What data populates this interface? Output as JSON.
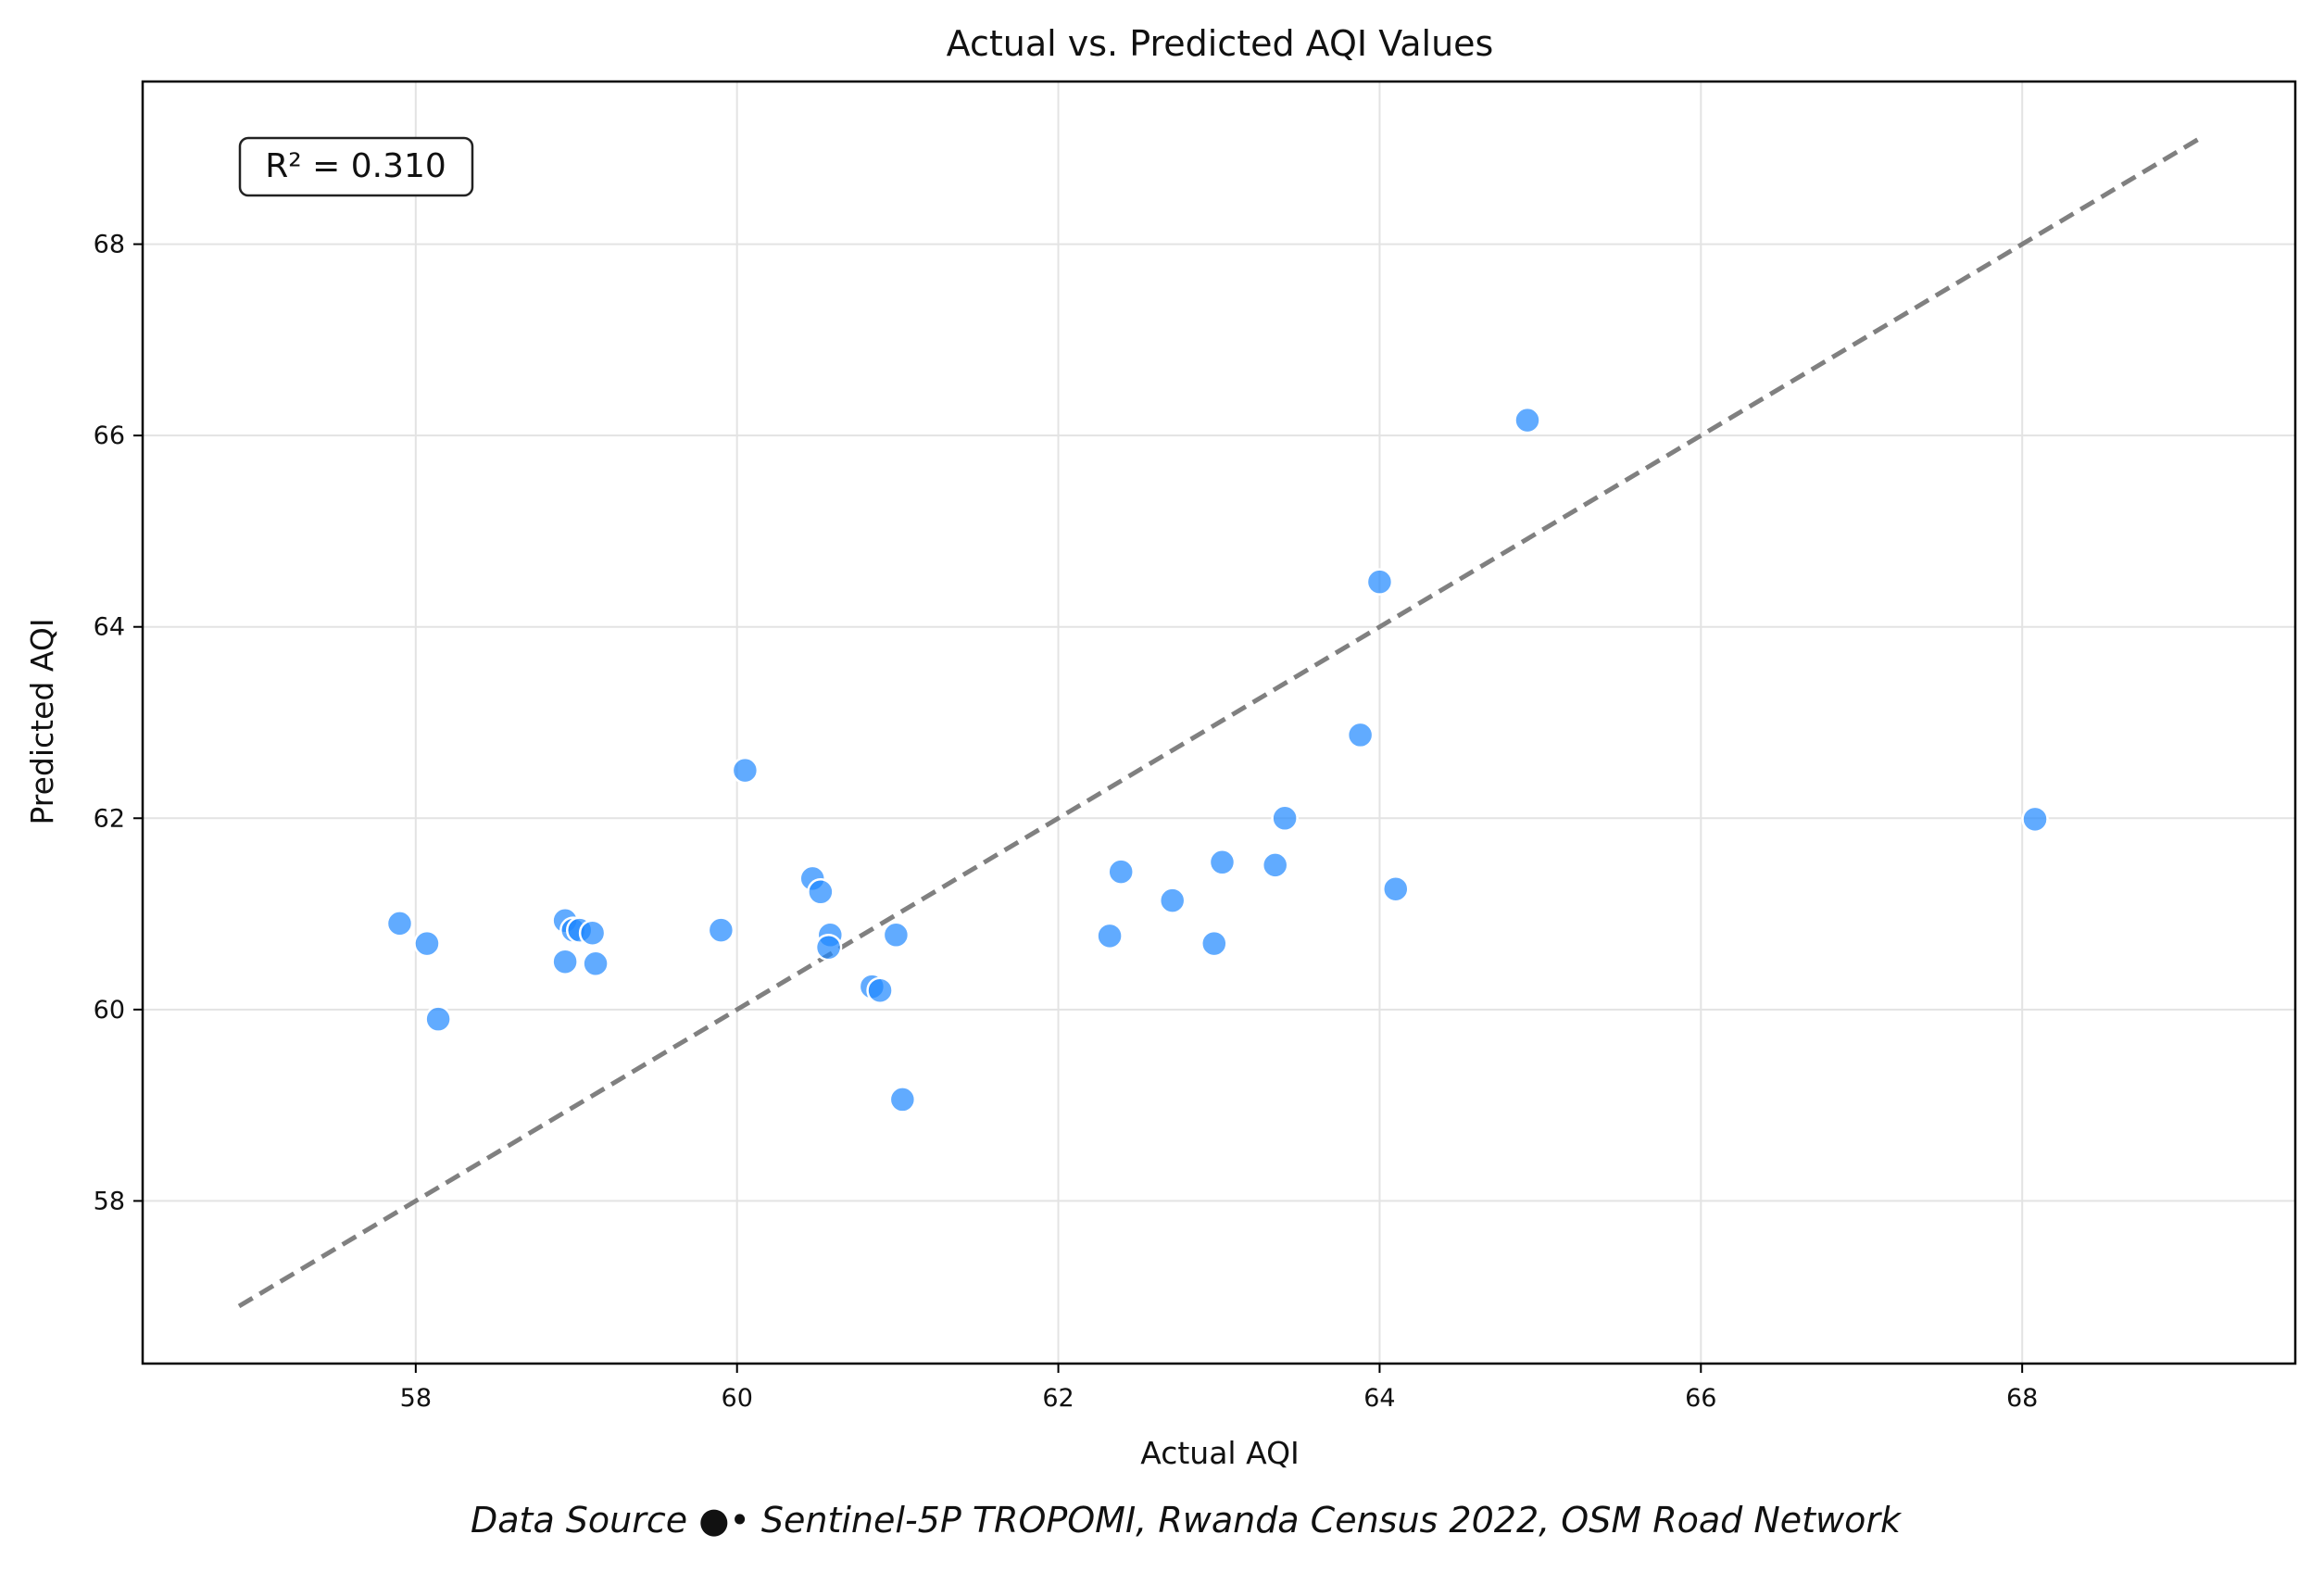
{
  "chart_data": {
    "type": "scatter",
    "title": "Actual vs. Predicted AQI Values",
    "xlabel": "Actual AQI",
    "ylabel": "Predicted AQI",
    "xlim": [
      56.3,
      69.7
    ],
    "ylim": [
      56.3,
      69.7
    ],
    "xticks": [
      58,
      60,
      62,
      64,
      66,
      68
    ],
    "yticks": [
      58,
      60,
      62,
      64,
      66,
      68
    ],
    "xtick_labels": [
      "58",
      "60",
      "62",
      "64",
      "66",
      "68"
    ],
    "ytick_labels": [
      "58",
      "60",
      "62",
      "64",
      "66",
      "68"
    ],
    "grid": true,
    "annotation": "R² = 0.310",
    "reference_line": {
      "style": "dashed",
      "color": "#808080",
      "from": [
        56.9,
        56.9
      ],
      "to": [
        69.1,
        69.1
      ]
    },
    "point_color": "#1E88FF",
    "series": [
      {
        "points": [
          [
            57.9,
            60.9
          ],
          [
            58.07,
            60.69
          ],
          [
            58.14,
            59.9
          ],
          [
            58.93,
            60.93
          ],
          [
            58.93,
            60.5
          ],
          [
            58.98,
            60.83
          ],
          [
            59.02,
            60.83
          ],
          [
            59.1,
            60.8
          ],
          [
            59.12,
            60.48
          ],
          [
            59.9,
            60.83
          ],
          [
            60.05,
            62.5
          ],
          [
            60.47,
            61.37
          ],
          [
            60.52,
            61.23
          ],
          [
            60.58,
            60.78
          ],
          [
            60.57,
            60.65
          ],
          [
            60.84,
            60.24
          ],
          [
            60.89,
            60.2
          ],
          [
            60.99,
            60.78
          ],
          [
            61.03,
            59.06
          ],
          [
            62.32,
            60.77
          ],
          [
            62.39,
            61.44
          ],
          [
            62.71,
            61.14
          ],
          [
            62.97,
            60.69
          ],
          [
            63.02,
            61.54
          ],
          [
            63.35,
            61.51
          ],
          [
            63.41,
            62.0
          ],
          [
            63.88,
            62.87
          ],
          [
            64.0,
            64.47
          ],
          [
            64.1,
            61.26
          ],
          [
            64.92,
            66.16
          ],
          [
            68.08,
            61.99
          ]
        ]
      }
    ]
  },
  "footer": {
    "source_text": "Data Source ●• Sentinel-5P TROPOMI, Rwanda Census 2022, OSM Road Network"
  }
}
